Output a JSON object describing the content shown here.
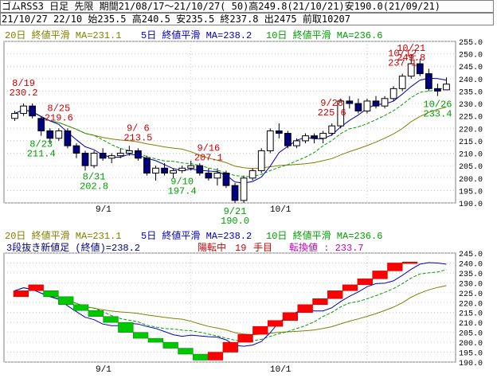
{
  "header": {
    "line1": "ゴムRSS3 日足 先限 期間21/08/17～21/10/27( 50)高249.8(21/10/21)安190.0(21/09/21)",
    "line2": "21/10/27 22/10 始235.5 高240.5 安235.5 終237.8 出2475 前取10207"
  },
  "legend": {
    "ma20": "20日 終値平滑 MA=231.1",
    "ma5": "5日 終値平滑 MA=238.2",
    "ma10": "10日 終値平滑 MA=236.6",
    "three_line_break": "3段抜き新値足 (終値)=238.2",
    "status": "陽転中",
    "count": "19",
    "count_unit": "手目",
    "reversal": "転換値 : 233.7"
  },
  "colors": {
    "ma20": "#808000",
    "ma5": "#0000c0",
    "ma10": "#00a000",
    "up_label": "#d00000",
    "down_label": "#00a000",
    "up_block": "#ff0000",
    "down_block": "#00c800",
    "candle_dark": "#000080"
  },
  "chart_data": [
    {
      "type": "candlestick",
      "x_ticks": [
        "9/1",
        "10/1"
      ],
      "ylim": [
        190,
        255
      ],
      "y_ticks": [
        "190.0",
        "195.0",
        "200.0",
        "205.0",
        "210.0",
        "215.0",
        "220.0",
        "225.0",
        "230.0",
        "235.0",
        "240.0",
        "245.0",
        "250.0",
        "255.0"
      ],
      "grid": true,
      "legend_position": "top",
      "series": [
        {
          "name": "20日 終値平滑 MA=231.1",
          "color": "#808000"
        },
        {
          "name": "5日 終値平滑 MA=238.2",
          "color": "#0000c0"
        },
        {
          "name": "10日 終値平滑 MA=236.6",
          "color": "#00a000"
        }
      ],
      "candles": [
        [
          224,
          227,
          223,
          226
        ],
        [
          226,
          230,
          225,
          229
        ],
        [
          229,
          230,
          224,
          225
        ],
        [
          224,
          225,
          217,
          219
        ],
        [
          219,
          220,
          214,
          216
        ],
        [
          216,
          220,
          215,
          219
        ],
        [
          219,
          220,
          212,
          213
        ],
        [
          213,
          214,
          208,
          210
        ],
        [
          210,
          211,
          203,
          205
        ],
        [
          205,
          211,
          204,
          210
        ],
        [
          210,
          212,
          207,
          208
        ],
        [
          208,
          210,
          206,
          209
        ],
        [
          209,
          212,
          208,
          210
        ],
        [
          210,
          213,
          209,
          211
        ],
        [
          211,
          212,
          207,
          208
        ],
        [
          208,
          209,
          201,
          202
        ],
        [
          202,
          205,
          199,
          204
        ],
        [
          204,
          206,
          201,
          202
        ],
        [
          202,
          204,
          200,
          203
        ],
        [
          203,
          205,
          202,
          204
        ],
        [
          204,
          207,
          203,
          205
        ],
        [
          205,
          206,
          201,
          202
        ],
        [
          202,
          204,
          199,
          200
        ],
        [
          200,
          204,
          197,
          202
        ],
        [
          202,
          203,
          196,
          197
        ],
        [
          197,
          198,
          190,
          191
        ],
        [
          191,
          201,
          190,
          200
        ],
        [
          200,
          204,
          199,
          203
        ],
        [
          203,
          212,
          202,
          211
        ],
        [
          211,
          220,
          210,
          219
        ],
        [
          219,
          222,
          216,
          218
        ],
        [
          218,
          219,
          212,
          213
        ],
        [
          213,
          216,
          212,
          215
        ],
        [
          215,
          218,
          214,
          217
        ],
        [
          217,
          218,
          214,
          216
        ],
        [
          216,
          219,
          214,
          218
        ],
        [
          218,
          222,
          217,
          221
        ],
        [
          221,
          232,
          220,
          231
        ],
        [
          231,
          233,
          228,
          230
        ],
        [
          230,
          232,
          226,
          227
        ],
        [
          227,
          232,
          226,
          231
        ],
        [
          231,
          233,
          228,
          229
        ],
        [
          229,
          233,
          228,
          232
        ],
        [
          232,
          237,
          231,
          236
        ],
        [
          236,
          242,
          235,
          241
        ],
        [
          241,
          249.8,
          240,
          246
        ],
        [
          246,
          248,
          241,
          242
        ],
        [
          242,
          244,
          235,
          236
        ],
        [
          236,
          238,
          233,
          235
        ],
        [
          235.5,
          240.5,
          235.5,
          237.8
        ]
      ],
      "annotations": [
        {
          "text": "8/19",
          "value": "230.2",
          "kind": "high"
        },
        {
          "text": "8/25",
          "value": "219.6",
          "kind": "high"
        },
        {
          "text": "9/ 6",
          "value": "213.5",
          "kind": "high"
        },
        {
          "text": "9/16",
          "value": "207.1",
          "kind": "high"
        },
        {
          "text": "9/28",
          "value": "225.6",
          "kind": "high"
        },
        {
          "text": "10/12",
          "value": "237.1",
          "kind": "high"
        },
        {
          "text": "10/21",
          "value": "249.8",
          "kind": "high"
        },
        {
          "text": "8/23",
          "value": "211.4",
          "kind": "low"
        },
        {
          "text": "8/31",
          "value": "202.8",
          "kind": "low"
        },
        {
          "text": "9/10",
          "value": "197.4",
          "kind": "low"
        },
        {
          "text": "9/21",
          "value": "190.0",
          "kind": "low"
        },
        {
          "text": "10/26",
          "value": "233.4",
          "kind": "low"
        }
      ]
    },
    {
      "type": "three_line_break",
      "x_ticks": [
        "9/1",
        "10/1"
      ],
      "ylim": [
        190,
        245
      ],
      "y_ticks": [
        "190.0",
        "195.0",
        "200.0",
        "205.0",
        "210.0",
        "215.0",
        "220.0",
        "225.0",
        "230.0",
        "235.0",
        "240.0",
        "245.0"
      ],
      "grid": true,
      "legend_position": "top",
      "closes": [
        226,
        229,
        225,
        219,
        216,
        213,
        210,
        205,
        202,
        200,
        197,
        191,
        200,
        203,
        211,
        219,
        221,
        231,
        236,
        241,
        246
      ],
      "blocks": [
        {
          "dir": "up",
          "from": 223,
          "to": 226
        },
        {
          "dir": "up",
          "from": 226,
          "to": 229
        },
        {
          "dir": "down",
          "from": 226,
          "to": 223
        },
        {
          "dir": "down",
          "from": 223,
          "to": 219
        },
        {
          "dir": "down",
          "from": 219,
          "to": 216
        },
        {
          "dir": "down",
          "from": 216,
          "to": 213
        },
        {
          "dir": "down",
          "from": 213,
          "to": 210
        },
        {
          "dir": "down",
          "from": 210,
          "to": 205
        },
        {
          "dir": "down",
          "from": 205,
          "to": 202
        },
        {
          "dir": "down",
          "from": 202,
          "to": 200
        },
        {
          "dir": "down",
          "from": 200,
          "to": 197
        },
        {
          "dir": "down",
          "from": 197,
          "to": 194
        },
        {
          "dir": "down",
          "from": 194,
          "to": 191
        },
        {
          "dir": "up",
          "from": 191,
          "to": 195
        },
        {
          "dir": "up",
          "from": 195,
          "to": 200
        },
        {
          "dir": "up",
          "from": 200,
          "to": 204
        },
        {
          "dir": "up",
          "from": 204,
          "to": 208
        },
        {
          "dir": "up",
          "from": 208,
          "to": 211
        },
        {
          "dir": "up",
          "from": 211,
          "to": 215
        },
        {
          "dir": "up",
          "from": 215,
          "to": 219
        },
        {
          "dir": "up",
          "from": 219,
          "to": 222
        },
        {
          "dir": "up",
          "from": 222,
          "to": 226
        },
        {
          "dir": "up",
          "from": 226,
          "to": 229
        },
        {
          "dir": "up",
          "from": 229,
          "to": 232
        },
        {
          "dir": "up",
          "from": 232,
          "to": 236
        },
        {
          "dir": "up",
          "from": 236,
          "to": 240
        },
        {
          "dir": "up",
          "from": 240,
          "to": 240.5
        }
      ]
    }
  ]
}
